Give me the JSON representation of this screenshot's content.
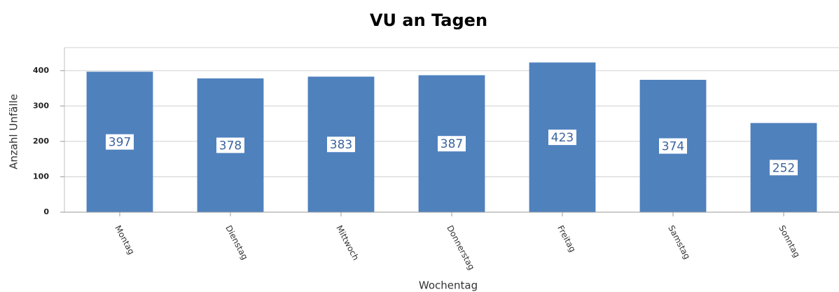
{
  "chart_data": {
    "type": "bar",
    "title": "VU an Tagen",
    "x_label": "Wochentag",
    "y_label": "Anzahl Unfälle",
    "categories": [
      "Montag",
      "Dienstag",
      "Mittwoch",
      "Donnerstag",
      "Freitag",
      "Samstag",
      "Sonntag"
    ],
    "values": [
      397,
      378,
      383,
      387,
      423,
      374,
      252
    ],
    "color": "#4f81bd",
    "ylim": [
      0,
      465
    ],
    "yticks": [
      0,
      100,
      200,
      300,
      400
    ],
    "grid": true
  }
}
